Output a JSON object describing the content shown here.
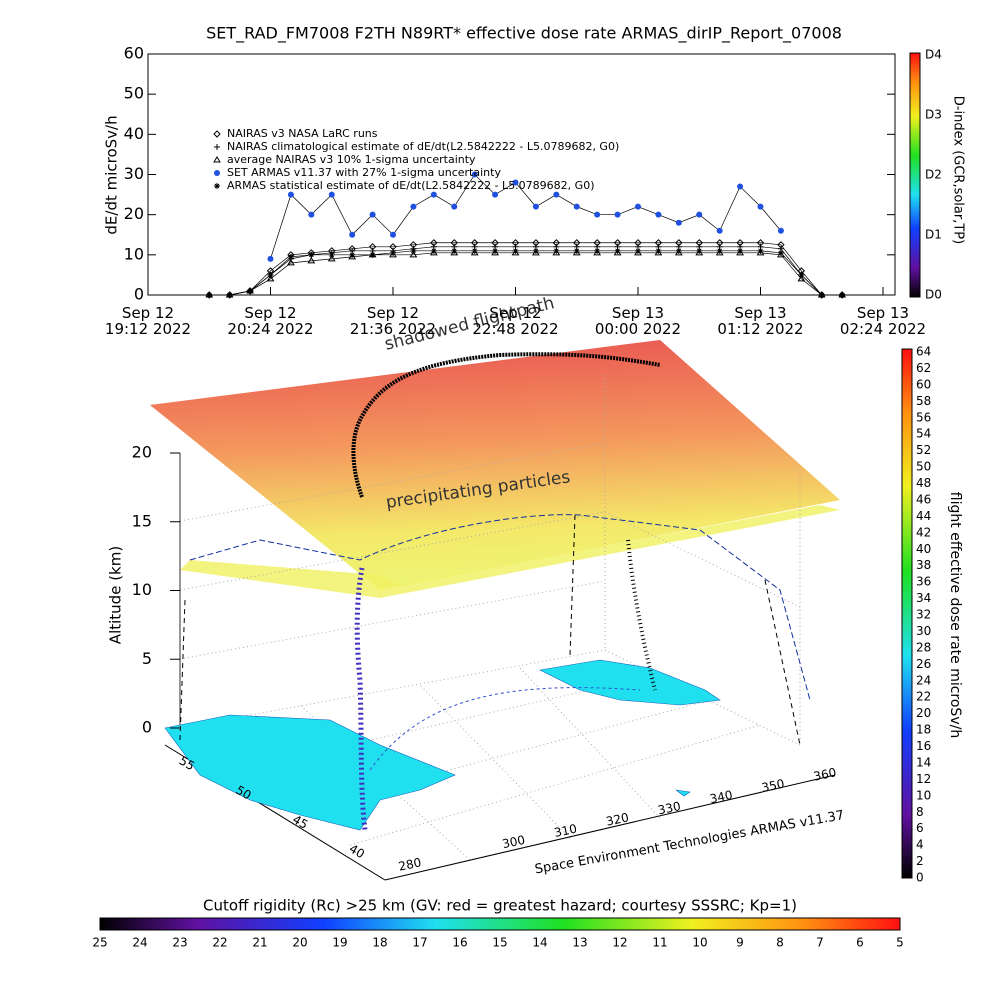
{
  "chart_data": [
    {
      "type": "line",
      "title": "SET_RAD_FM7008  F2TH N89RT* effective dose rate ARMAS_dirIP_Report_07008",
      "y_label": "dE/dt microSv/h",
      "xlim": [
        "2022-09-12T19:12",
        "2022-09-13T02:24"
      ],
      "xticks": [
        {
          "value": "2022-09-12T19:12",
          "label": "Sep 12\n19:12 2022"
        },
        {
          "value": "2022-09-12T20:24",
          "label": "Sep 12\n20:24 2022"
        },
        {
          "value": "2022-09-12T21:36",
          "label": "Sep 12\n21:36 2022"
        },
        {
          "value": "2022-09-12T22:48",
          "label": "Sep 12\n22:48 2022"
        },
        {
          "value": "2022-09-13T00:00",
          "label": "Sep 13\n00:00 2022"
        },
        {
          "value": "2022-09-13T01:12",
          "label": "Sep 13\n01:12 2022"
        },
        {
          "value": "2022-09-13T02:24",
          "label": "Sep 13\n02:24 2022"
        }
      ],
      "ylim": [
        0,
        60
      ],
      "yticks": [
        0,
        10,
        20,
        30,
        40,
        50,
        60
      ],
      "x": [
        "2022-09-12T19:48",
        "2022-09-12T20:00",
        "2022-09-12T20:12",
        "2022-09-12T20:24",
        "2022-09-12T20:36",
        "2022-09-12T20:48",
        "2022-09-12T21:00",
        "2022-09-12T21:12",
        "2022-09-12T21:24",
        "2022-09-12T21:36",
        "2022-09-12T21:48",
        "2022-09-12T22:00",
        "2022-09-12T22:12",
        "2022-09-12T22:24",
        "2022-09-12T22:36",
        "2022-09-12T22:48",
        "2022-09-12T23:00",
        "2022-09-12T23:12",
        "2022-09-12T23:24",
        "2022-09-12T23:36",
        "2022-09-12T23:48",
        "2022-09-13T00:00",
        "2022-09-13T00:12",
        "2022-09-13T00:24",
        "2022-09-13T00:36",
        "2022-09-13T00:48",
        "2022-09-13T01:00",
        "2022-09-13T01:12",
        "2022-09-13T01:24",
        "2022-09-13T01:36",
        "2022-09-13T01:48",
        "2022-09-13T02:00"
      ],
      "series": [
        {
          "name": "NAIRAS v3 NASA LaRC runs",
          "color": "#000000",
          "marker": "diamond",
          "values": [
            0,
            0,
            1,
            6,
            10,
            10.5,
            11,
            11.5,
            12,
            12,
            12.5,
            13,
            13,
            13,
            13,
            13,
            13,
            13,
            13,
            13,
            13,
            13,
            13,
            13,
            13,
            13,
            13,
            13,
            12.5,
            6,
            0,
            0
          ]
        },
        {
          "name": "NAIRAS climatological estimate of dE/dt(L2.5842222 - L5.0789682, G0)",
          "color": "#000000",
          "marker": "plus",
          "values": [
            0,
            0,
            1,
            5,
            9,
            10,
            10.5,
            11,
            11,
            11,
            11.5,
            12,
            12,
            12,
            12,
            12,
            12,
            12,
            12,
            12,
            12,
            12,
            12,
            12,
            12,
            12,
            12,
            12,
            11.5,
            5,
            0,
            0
          ]
        },
        {
          "name": "average NAIRAS v3 10% 1-sigma uncertainty",
          "color": "#000000",
          "marker": "triangle",
          "values": [
            0,
            0,
            1,
            4,
            8,
            8.5,
            9,
            9.5,
            10,
            10,
            10,
            10.5,
            10.5,
            10.5,
            10.5,
            10.5,
            10.5,
            10.5,
            10.5,
            10.5,
            10.5,
            10.5,
            10.5,
            10.5,
            10.5,
            10.5,
            10.5,
            10.5,
            10,
            4,
            0,
            0
          ]
        },
        {
          "name": "SET ARMAS v11.37 with 27% 1-sigma uncertainty",
          "color": "#2050e0",
          "marker": "circle",
          "values": [
            null,
            null,
            null,
            9,
            25,
            20,
            25,
            15,
            20,
            15,
            22,
            25,
            22,
            30,
            25,
            28,
            22,
            25,
            22,
            20,
            20,
            22,
            20,
            18,
            20,
            16,
            27,
            22,
            16,
            null,
            null,
            null
          ]
        },
        {
          "name": "ARMAS statistical estimate of dE/dt(L2.5842222 - L5.0789682, G0)",
          "color": "#000000",
          "marker": "asterisk",
          "values": [
            0,
            0,
            1,
            5,
            9.5,
            10,
            10,
            10,
            10,
            10.5,
            11,
            11,
            11,
            11,
            11,
            11,
            11,
            11,
            11,
            11,
            11,
            11,
            11,
            11,
            11,
            11,
            11,
            11,
            10.5,
            5,
            0,
            0
          ]
        }
      ],
      "colorbar": {
        "label": "D-index (GCR,solar,TP)",
        "ticks": [
          "D0",
          "D1",
          "D2",
          "D3",
          "D4"
        ]
      }
    },
    {
      "type": "surface3d",
      "annotations": [
        "shadowed flightpath",
        "precipitating particles"
      ],
      "z_label": "Altitude (km)",
      "zlim": [
        0,
        20
      ],
      "zticks": [
        0,
        5,
        10,
        15,
        20
      ],
      "ylim": [
        40,
        55
      ],
      "yticks": [
        40,
        45,
        50,
        55
      ],
      "xlim": [
        280,
        360
      ],
      "xticks": [
        280,
        300,
        310,
        320,
        330,
        340,
        350,
        360
      ],
      "credit": "Space Environment Technologies ARMAS v11.37",
      "colorbar": {
        "label": "flight effective dose rate microSv/h",
        "lim": [
          0,
          64
        ],
        "ticks": [
          0,
          2,
          4,
          6,
          8,
          10,
          12,
          14,
          16,
          18,
          20,
          22,
          24,
          26,
          28,
          30,
          32,
          34,
          36,
          38,
          40,
          42,
          44,
          46,
          48,
          50,
          52,
          54,
          56,
          58,
          60,
          62,
          64
        ]
      },
      "rigidity_bar": {
        "label": "Cutoff rigidity (Rc) >25 km (GV: red = greatest hazard; courtesy SSSRC; Kp=1)",
        "lim": [
          25,
          5
        ],
        "ticks": [
          25,
          24,
          23,
          22,
          21,
          20,
          19,
          18,
          17,
          16,
          15,
          14,
          13,
          12,
          11,
          10,
          9,
          8,
          7,
          6,
          5
        ]
      }
    }
  ]
}
